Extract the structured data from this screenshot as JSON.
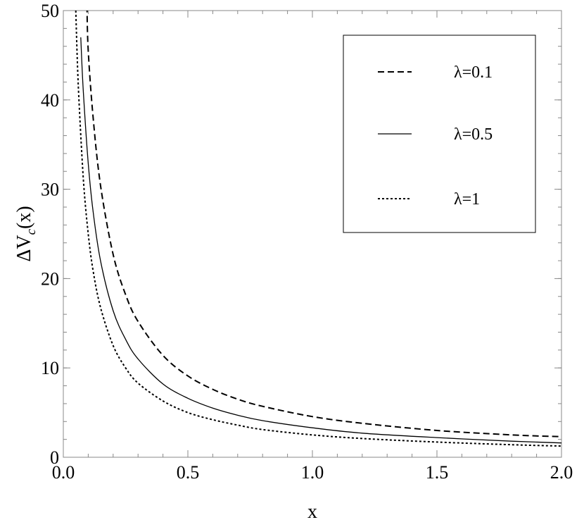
{
  "chart_data": {
    "type": "line",
    "title": "",
    "xlabel": "x",
    "ylabel": "ΔV",
    "ylabel_sub": "c",
    "ylabel_suffix": "(x)",
    "xlim": [
      0,
      2
    ],
    "ylim": [
      0,
      50
    ],
    "xticks": [
      0.0,
      0.5,
      1.0,
      1.5,
      2.0
    ],
    "xtick_labels": [
      "0.0",
      "0.5",
      "1.0",
      "1.5",
      "2.0"
    ],
    "yticks": [
      0,
      10,
      20,
      30,
      40,
      50
    ],
    "ytick_labels": [
      "0",
      "10",
      "20",
      "30",
      "40",
      "50"
    ],
    "grid": false,
    "legend_position": "top-right",
    "series": [
      {
        "name": "λ=0.1",
        "style": "dashed",
        "color": "#000000",
        "x": [
          0.095,
          0.1,
          0.12,
          0.15,
          0.2,
          0.25,
          0.3,
          0.4,
          0.5,
          0.6,
          0.7,
          0.8,
          1.0,
          1.2,
          1.5,
          1.8,
          2.0
        ],
        "y": [
          50.5,
          45.5,
          37.9,
          30.3,
          22.7,
          18.2,
          15.2,
          11.4,
          9.1,
          7.6,
          6.5,
          5.7,
          4.55,
          3.8,
          3.0,
          2.5,
          2.3
        ]
      },
      {
        "name": "λ=0.5",
        "style": "solid",
        "color": "#000000",
        "x": [
          0.07,
          0.08,
          0.1,
          0.12,
          0.15,
          0.2,
          0.25,
          0.3,
          0.4,
          0.5,
          0.6,
          0.7,
          0.8,
          1.0,
          1.2,
          1.5,
          1.8,
          2.0
        ],
        "y": [
          47.0,
          41.1,
          32.9,
          27.4,
          21.9,
          16.4,
          13.2,
          11.0,
          8.2,
          6.6,
          5.5,
          4.7,
          4.1,
          3.3,
          2.7,
          2.2,
          1.8,
          1.6
        ]
      },
      {
        "name": "λ=1",
        "style": "dotted",
        "color": "#000000",
        "x": [
          0.05,
          0.06,
          0.08,
          0.1,
          0.12,
          0.15,
          0.2,
          0.25,
          0.3,
          0.4,
          0.5,
          0.6,
          0.7,
          0.8,
          1.0,
          1.2,
          1.5,
          1.8,
          2.0
        ],
        "y": [
          50.0,
          41.7,
          31.3,
          25.0,
          20.8,
          16.7,
          12.5,
          10.0,
          8.3,
          6.3,
          5.0,
          4.2,
          3.6,
          3.1,
          2.5,
          2.1,
          1.7,
          1.4,
          1.25
        ]
      }
    ]
  }
}
